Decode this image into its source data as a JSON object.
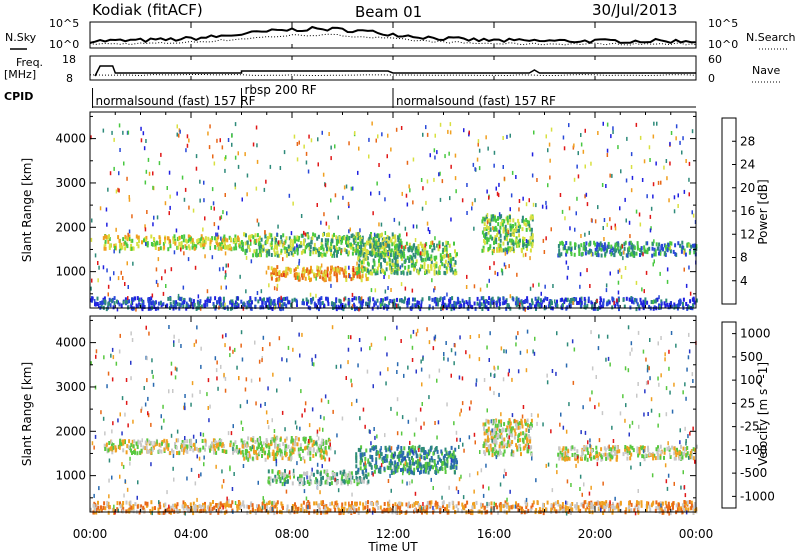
{
  "header": {
    "station": "Kodiak (fitACF)",
    "beam": "Beam 01",
    "date": "30/Jul/2013"
  },
  "time_axis": {
    "label": "Time UT",
    "ticks": [
      "00:00",
      "04:00",
      "08:00",
      "12:00",
      "16:00",
      "20:00",
      "00:00"
    ],
    "range_hours": [
      0,
      24
    ]
  },
  "noise_panel": {
    "left_label": "N.Sky",
    "right_label": "N.Search",
    "left_ticks": [
      "10^5",
      "10^0"
    ],
    "right_ticks": [
      "10^5",
      "10^0"
    ]
  },
  "freq_panel": {
    "left_label_1": "Freq.",
    "left_label_2": "[MHz]",
    "right_label": "Nave",
    "left_ticks": [
      "18",
      "8"
    ],
    "right_ticks": [
      "60",
      "0"
    ]
  },
  "cpid": {
    "label": "CPID",
    "segments": [
      {
        "name": "normalsound (fast) 157 RF",
        "start_hour": 0.1,
        "end_hour": 6.0
      },
      {
        "name": "rbsp 200 RF",
        "start_hour": 6.0,
        "end_hour": 12.0
      },
      {
        "name": "normalsound (fast) 157 RF",
        "start_hour": 12.0,
        "end_hour": 24.0
      }
    ]
  },
  "range_axis": {
    "label": "Slant Range [km]",
    "ticks": [
      "1000",
      "2000",
      "3000",
      "4000"
    ],
    "tick_values": [
      1000,
      2000,
      3000,
      4000
    ],
    "range_km": [
      180,
      4600
    ]
  },
  "chart_data": [
    {
      "type": "heatmap",
      "parameter": "power",
      "colorbar_label": "Power [dB]",
      "colorbar_ticks": [
        "4",
        "8",
        "12",
        "16",
        "20",
        "24",
        "28"
      ],
      "colorbar_values": [
        4,
        8,
        12,
        16,
        20,
        24,
        28
      ],
      "colorbar_range": [
        0,
        32
      ],
      "colors": [
        "#2020e0",
        "#2848d8",
        "#2e8a7a",
        "#48c840",
        "#d8e040",
        "#f0a020",
        "#e86818",
        "#e01818"
      ],
      "echo_regions": [
        {
          "t0": 0.5,
          "t1": 6.0,
          "r0": 1550,
          "r1": 1850,
          "level": 4
        },
        {
          "t0": 6.0,
          "t1": 12.3,
          "r0": 1400,
          "r1": 1900,
          "level": 3
        },
        {
          "t0": 7.0,
          "t1": 11.0,
          "r0": 850,
          "r1": 1150,
          "level": 5
        },
        {
          "t0": 10.5,
          "t1": 14.5,
          "r0": 1000,
          "r1": 1700,
          "level": 3
        },
        {
          "t0": 15.5,
          "t1": 17.5,
          "r0": 1500,
          "r1": 2300,
          "level": 3
        },
        {
          "t0": 18.5,
          "t1": 24.0,
          "r0": 1400,
          "r1": 1700,
          "level": 2
        },
        {
          "t0": 0.0,
          "t1": 24.0,
          "r0": 200,
          "r1": 450,
          "level": 1
        }
      ]
    },
    {
      "type": "heatmap",
      "parameter": "velocity",
      "colorbar_label": "Velocity [m s^-1]",
      "colorbar_ticks": [
        "1000",
        "500",
        "100",
        "25",
        "-25",
        "-100",
        "-500",
        "-1000"
      ],
      "colorbar_values": [
        1000,
        500,
        100,
        25,
        -25,
        -100,
        -500,
        -1000
      ],
      "colors": [
        "#2838c8",
        "#2a6ab0",
        "#2e8a7a",
        "#58c840",
        "#c8c8c8",
        "#f0a020",
        "#e86818",
        "#e01818"
      ],
      "echo_regions": [
        {
          "t0": 0.5,
          "t1": 6.0,
          "r0": 1550,
          "r1": 1850,
          "level": 4
        },
        {
          "t0": 6.0,
          "t1": 9.5,
          "r0": 1400,
          "r1": 1900,
          "level": 4
        },
        {
          "t0": 7.0,
          "t1": 11.0,
          "r0": 850,
          "r1": 1150,
          "level": 3
        },
        {
          "t0": 10.5,
          "t1": 14.5,
          "r0": 1100,
          "r1": 1700,
          "level": 2
        },
        {
          "t0": 15.5,
          "t1": 17.5,
          "r0": 1500,
          "r1": 2300,
          "level": 4
        },
        {
          "t0": 18.5,
          "t1": 24.0,
          "r0": 1400,
          "r1": 1700,
          "level": 4
        },
        {
          "t0": 0.0,
          "t1": 24.0,
          "r0": 200,
          "r1": 450,
          "level": 5
        }
      ]
    }
  ]
}
